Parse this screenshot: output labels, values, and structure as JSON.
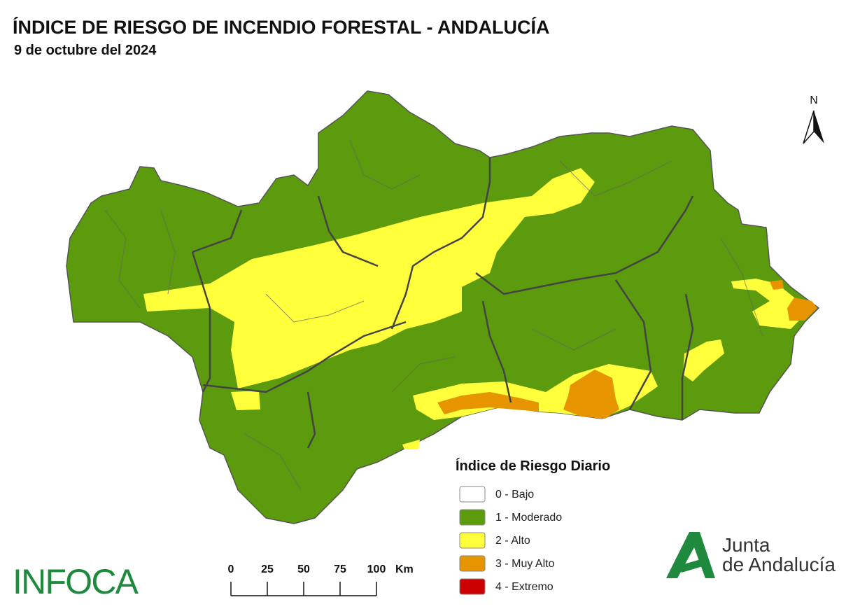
{
  "header": {
    "title": "ÍNDICE DE RIESGO DE INCENDIO FORESTAL - ANDALUCÍA",
    "subtitle": "9 de octubre del 2024"
  },
  "north": "N",
  "legend": {
    "title": "Índice de Riesgo Diario",
    "items": [
      {
        "label": "0 - Bajo",
        "color": "#ffffff"
      },
      {
        "label": "1 - Moderado",
        "color": "#5c9a0e"
      },
      {
        "label": "2 - Alto",
        "color": "#ffff3c"
      },
      {
        "label": "3 - Muy Alto",
        "color": "#e69500"
      },
      {
        "label": "4 - Extremo",
        "color": "#cc0000"
      }
    ]
  },
  "scale": {
    "ticks": [
      0,
      25,
      50,
      75,
      100
    ],
    "unit": "Km"
  },
  "logos": {
    "infoca": "INFOCA",
    "junta": [
      "Junta",
      "de Andalucía"
    ]
  }
}
